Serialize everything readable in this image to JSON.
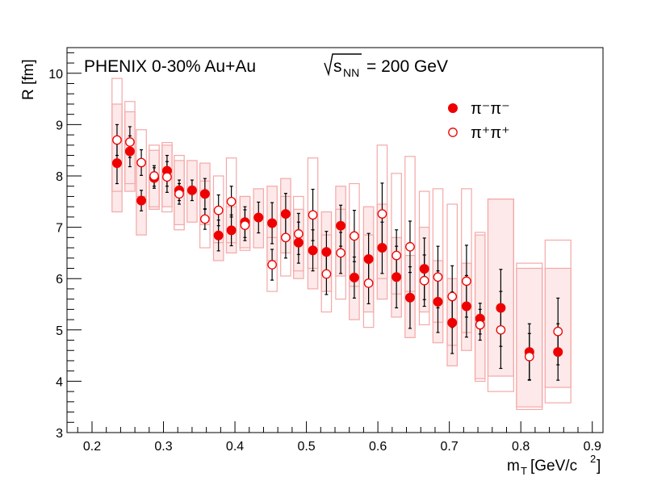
{
  "chart_data": {
    "type": "scatter",
    "title": "PHENIX 0-30%  Au+Au",
    "energy_label": "= 200 GeV",
    "energy_symbol": "s",
    "energy_subscript": "NN",
    "xlabel": "m",
    "xlabel_sub": "T",
    "xlabel_units": "[GeV/c",
    "xlabel_units_sup": "2",
    "xlabel_units_close": "]",
    "ylabel": "R [fm]",
    "xlim": [
      0.165,
      0.915
    ],
    "ylim": [
      3,
      10.5
    ],
    "xticks": [
      "0.2",
      "0.3",
      "0.4",
      "0.5",
      "0.6",
      "0.7",
      "0.8",
      "0.9"
    ],
    "yticks": [
      "3",
      "4",
      "5",
      "6",
      "7",
      "8",
      "9",
      "10"
    ],
    "colors": {
      "marker": "#ee0000",
      "band_fill": "#fde5e5",
      "band_stroke": "#f4a8a8",
      "errorbar": "#000000"
    },
    "legend": [
      {
        "label": "π⁻π⁻",
        "marker": "filled"
      },
      {
        "label": "π⁺π⁺",
        "marker": "open"
      }
    ],
    "series": [
      {
        "name": "π⁻π⁻",
        "marker": "filled",
        "points": [
          {
            "x": 0.235,
            "y": 8.25,
            "err": 0.4,
            "sys_lo": 7.3,
            "sys_hi": 9.4,
            "hw": 0.007
          },
          {
            "x": 0.253,
            "y": 8.48,
            "err": 0.3,
            "sys_lo": 7.7,
            "sys_hi": 9.25,
            "hw": 0.007
          },
          {
            "x": 0.269,
            "y": 7.52,
            "err": 0.2,
            "sys_lo": 6.85,
            "sys_hi": 8.3,
            "hw": 0.007
          },
          {
            "x": 0.287,
            "y": 7.96,
            "err": 0.2,
            "sys_lo": 7.35,
            "sys_hi": 8.5,
            "hw": 0.007
          },
          {
            "x": 0.305,
            "y": 8.1,
            "err": 0.3,
            "sys_lo": 7.4,
            "sys_hi": 8.6,
            "hw": 0.007
          },
          {
            "x": 0.322,
            "y": 7.72,
            "err": 0.2,
            "sys_lo": 7.05,
            "sys_hi": 8.3,
            "hw": 0.007
          },
          {
            "x": 0.34,
            "y": 7.72,
            "err": 0.2,
            "sys_lo": 7.1,
            "sys_hi": 8.3,
            "hw": 0.007
          },
          {
            "x": 0.358,
            "y": 7.65,
            "err": 0.3,
            "sys_lo": 7.05,
            "sys_hi": 8.25,
            "hw": 0.007
          },
          {
            "x": 0.377,
            "y": 6.84,
            "err": 0.3,
            "sys_lo": 6.35,
            "sys_hi": 7.35,
            "hw": 0.007
          },
          {
            "x": 0.395,
            "y": 6.94,
            "err": 0.3,
            "sys_lo": 6.5,
            "sys_hi": 7.4,
            "hw": 0.007
          },
          {
            "x": 0.414,
            "y": 7.1,
            "err": 0.3,
            "sys_lo": 6.6,
            "sys_hi": 7.6,
            "hw": 0.007
          },
          {
            "x": 0.433,
            "y": 7.19,
            "err": 0.3,
            "sys_lo": 6.6,
            "sys_hi": 7.75,
            "hw": 0.007
          },
          {
            "x": 0.452,
            "y": 7.08,
            "err": 0.4,
            "sys_lo": 6.35,
            "sys_hi": 7.8,
            "hw": 0.007
          },
          {
            "x": 0.471,
            "y": 7.26,
            "err": 0.4,
            "sys_lo": 6.5,
            "sys_hi": 7.95,
            "hw": 0.007
          },
          {
            "x": 0.489,
            "y": 6.7,
            "err": 0.4,
            "sys_lo": 6.0,
            "sys_hi": 7.35,
            "hw": 0.007
          },
          {
            "x": 0.509,
            "y": 6.55,
            "err": 0.4,
            "sys_lo": 5.8,
            "sys_hi": 7.3,
            "hw": 0.007
          },
          {
            "x": 0.528,
            "y": 6.52,
            "err": 0.4,
            "sys_lo": 5.75,
            "sys_hi": 7.3,
            "hw": 0.007
          },
          {
            "x": 0.548,
            "y": 7.03,
            "err": 0.4,
            "sys_lo": 6.05,
            "sys_hi": 7.8,
            "hw": 0.007
          },
          {
            "x": 0.567,
            "y": 6.02,
            "err": 0.4,
            "sys_lo": 5.2,
            "sys_hi": 6.8,
            "hw": 0.007
          },
          {
            "x": 0.587,
            "y": 6.38,
            "err": 0.5,
            "sys_lo": 5.35,
            "sys_hi": 7.4,
            "hw": 0.007
          },
          {
            "x": 0.606,
            "y": 6.6,
            "err": 0.5,
            "sys_lo": 5.6,
            "sys_hi": 7.45,
            "hw": 0.007
          },
          {
            "x": 0.626,
            "y": 6.03,
            "err": 0.6,
            "sys_lo": 5.25,
            "sys_hi": 6.8,
            "hw": 0.007
          },
          {
            "x": 0.645,
            "y": 5.63,
            "err": 0.6,
            "sys_lo": 4.85,
            "sys_hi": 6.45,
            "hw": 0.007
          },
          {
            "x": 0.665,
            "y": 6.19,
            "err": 0.6,
            "sys_lo": 5.35,
            "sys_hi": 7.0,
            "hw": 0.007
          },
          {
            "x": 0.684,
            "y": 5.55,
            "err": 0.6,
            "sys_lo": 4.75,
            "sys_hi": 6.35,
            "hw": 0.007
          },
          {
            "x": 0.704,
            "y": 5.14,
            "err": 0.6,
            "sys_lo": 4.3,
            "sys_hi": 6.0,
            "hw": 0.007
          },
          {
            "x": 0.724,
            "y": 5.46,
            "err": 0.6,
            "sys_lo": 4.6,
            "sys_hi": 6.3,
            "hw": 0.007
          },
          {
            "x": 0.743,
            "y": 5.22,
            "err": 0.3,
            "sys_lo": 4.05,
            "sys_hi": 6.85,
            "hw": 0.007
          },
          {
            "x": 0.772,
            "y": 5.43,
            "err": 0.75,
            "sys_lo": 4.1,
            "sys_hi": 7.55,
            "hw": 0.018
          },
          {
            "x": 0.812,
            "y": 4.57,
            "err": 0.55,
            "sys_lo": 3.5,
            "sys_hi": 6.2,
            "hw": 0.018
          },
          {
            "x": 0.852,
            "y": 4.57,
            "err": 0.55,
            "sys_lo": 3.88,
            "sys_hi": 6.2,
            "hw": 0.018
          }
        ]
      },
      {
        "name": "π⁺π⁺",
        "marker": "open",
        "points": [
          {
            "x": 0.235,
            "y": 8.7,
            "err": 0.3,
            "sys_lo": 7.7,
            "sys_hi": 9.9,
            "hw": 0.007
          },
          {
            "x": 0.253,
            "y": 8.66,
            "err": 0.3,
            "sys_lo": 7.85,
            "sys_hi": 9.45,
            "hw": 0.007
          },
          {
            "x": 0.269,
            "y": 8.26,
            "err": 0.25,
            "sys_lo": 7.6,
            "sys_hi": 8.9,
            "hw": 0.007
          },
          {
            "x": 0.287,
            "y": 8.0,
            "err": 0.2,
            "sys_lo": 7.4,
            "sys_hi": 8.6,
            "hw": 0.007
          },
          {
            "x": 0.305,
            "y": 7.98,
            "err": 0.3,
            "sys_lo": 7.3,
            "sys_hi": 8.65,
            "hw": 0.007
          },
          {
            "x": 0.322,
            "y": 7.65,
            "err": 0.2,
            "sys_lo": 6.95,
            "sys_hi": 8.4,
            "hw": 0.007
          },
          {
            "x": 0.358,
            "y": 7.16,
            "err": 0.2,
            "sys_lo": 6.6,
            "sys_hi": 7.9,
            "hw": 0.007
          },
          {
            "x": 0.377,
            "y": 7.33,
            "err": 0.3,
            "sys_lo": 6.7,
            "sys_hi": 8.0,
            "hw": 0.007
          },
          {
            "x": 0.395,
            "y": 7.5,
            "err": 0.3,
            "sys_lo": 6.7,
            "sys_hi": 8.35,
            "hw": 0.007
          },
          {
            "x": 0.414,
            "y": 7.04,
            "err": 0.3,
            "sys_lo": 6.55,
            "sys_hi": 7.6,
            "hw": 0.007
          },
          {
            "x": 0.452,
            "y": 6.27,
            "err": 0.3,
            "sys_lo": 5.75,
            "sys_hi": 6.8,
            "hw": 0.007
          },
          {
            "x": 0.471,
            "y": 6.8,
            "err": 0.4,
            "sys_lo": 6.05,
            "sys_hi": 7.6,
            "hw": 0.007
          },
          {
            "x": 0.489,
            "y": 6.87,
            "err": 0.4,
            "sys_lo": 6.15,
            "sys_hi": 7.6,
            "hw": 0.007
          },
          {
            "x": 0.509,
            "y": 7.24,
            "err": 0.5,
            "sys_lo": 6.2,
            "sys_hi": 8.35,
            "hw": 0.007
          },
          {
            "x": 0.528,
            "y": 6.09,
            "err": 0.4,
            "sys_lo": 5.35,
            "sys_hi": 6.85,
            "hw": 0.007
          },
          {
            "x": 0.548,
            "y": 6.5,
            "err": 0.4,
            "sys_lo": 5.6,
            "sys_hi": 7.35,
            "hw": 0.007
          },
          {
            "x": 0.567,
            "y": 6.83,
            "err": 0.5,
            "sys_lo": 5.85,
            "sys_hi": 7.85,
            "hw": 0.007
          },
          {
            "x": 0.587,
            "y": 5.91,
            "err": 0.4,
            "sys_lo": 5.05,
            "sys_hi": 6.85,
            "hw": 0.007
          },
          {
            "x": 0.606,
            "y": 7.26,
            "err": 0.6,
            "sys_lo": 6.0,
            "sys_hi": 8.6,
            "hw": 0.007
          },
          {
            "x": 0.626,
            "y": 6.45,
            "err": 0.5,
            "sys_lo": 5.7,
            "sys_hi": 8.05,
            "hw": 0.007
          },
          {
            "x": 0.645,
            "y": 6.62,
            "err": 0.5,
            "sys_lo": 5.75,
            "sys_hi": 8.38,
            "hw": 0.007
          },
          {
            "x": 0.665,
            "y": 5.96,
            "err": 0.5,
            "sys_lo": 5.1,
            "sys_hi": 7.7,
            "hw": 0.007
          },
          {
            "x": 0.684,
            "y": 6.03,
            "err": 0.6,
            "sys_lo": 5.15,
            "sys_hi": 7.75,
            "hw": 0.007
          },
          {
            "x": 0.704,
            "y": 5.65,
            "err": 0.6,
            "sys_lo": 4.7,
            "sys_hi": 7.45,
            "hw": 0.007
          },
          {
            "x": 0.724,
            "y": 5.95,
            "err": 0.7,
            "sys_lo": 4.95,
            "sys_hi": 7.75,
            "hw": 0.007
          },
          {
            "x": 0.743,
            "y": 5.1,
            "err": 0.3,
            "sys_lo": 4.0,
            "sys_hi": 6.9,
            "hw": 0.007
          },
          {
            "x": 0.772,
            "y": 5.0,
            "err": 0.75,
            "sys_lo": 3.8,
            "sys_hi": 7.55,
            "hw": 0.018
          },
          {
            "x": 0.812,
            "y": 4.48,
            "err": 0.45,
            "sys_lo": 3.45,
            "sys_hi": 6.3,
            "hw": 0.018
          },
          {
            "x": 0.852,
            "y": 4.97,
            "err": 0.65,
            "sys_lo": 3.58,
            "sys_hi": 6.75,
            "hw": 0.018
          }
        ]
      }
    ]
  }
}
